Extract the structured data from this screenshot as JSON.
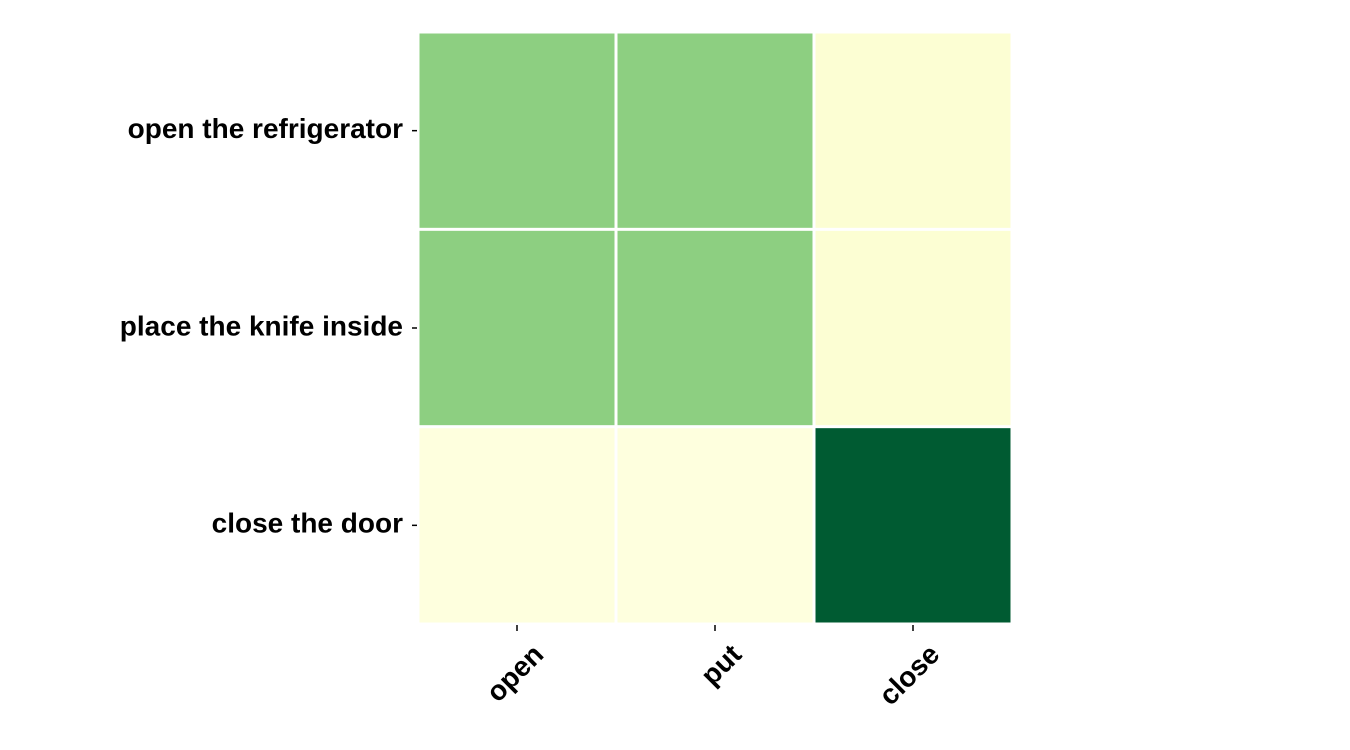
{
  "chart_data": {
    "type": "heatmap",
    "title": "",
    "xlabel": "",
    "ylabel": "",
    "x_categories": [
      "open",
      "put",
      "close"
    ],
    "y_categories": [
      "open the refrigerator",
      "place the knife inside",
      "close the door"
    ],
    "values": [
      [
        0.45,
        0.45,
        0.05
      ],
      [
        0.45,
        0.45,
        0.05
      ],
      [
        0.02,
        0.02,
        0.92
      ]
    ],
    "colorscale": "YlGn",
    "grid": false,
    "colorbar": false,
    "colors": {
      "cell_border": "#ffffff",
      "axis_frame": "#ffffff",
      "tick": "#000000"
    }
  }
}
